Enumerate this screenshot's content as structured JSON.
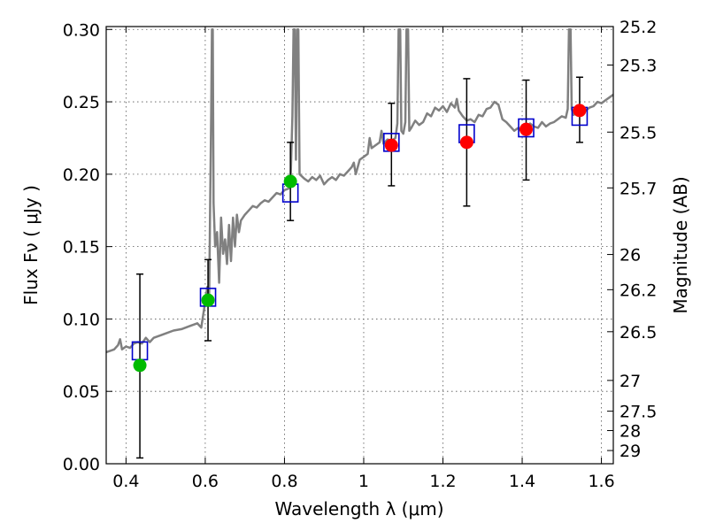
{
  "chart_data": {
    "type": "scatter",
    "xlabel": "Wavelength  λ (μm)",
    "ylabel": "Flux  Fν  ( μJy )",
    "y2label": "Magnitude (AB)",
    "xlim": [
      0.35,
      1.63
    ],
    "ylim": [
      0.0,
      0.302
    ],
    "grid": true,
    "x_ticks": [
      {
        "value": 0.4,
        "label": "0.4"
      },
      {
        "value": 0.6,
        "label": "0.6"
      },
      {
        "value": 0.8,
        "label": "0.8"
      },
      {
        "value": 1.0,
        "label": "1"
      },
      {
        "value": 1.2,
        "label": "1.2"
      },
      {
        "value": 1.4,
        "label": "1.4"
      },
      {
        "value": 1.6,
        "label": "1.6"
      }
    ],
    "y_ticks": [
      {
        "value": 0.0,
        "label": "0.00"
      },
      {
        "value": 0.05,
        "label": "0.05"
      },
      {
        "value": 0.1,
        "label": "0.10"
      },
      {
        "value": 0.15,
        "label": "0.15"
      },
      {
        "value": 0.2,
        "label": "0.20"
      },
      {
        "value": 0.25,
        "label": "0.25"
      },
      {
        "value": 0.3,
        "label": "0.30"
      }
    ],
    "mag_ticks": [
      {
        "value": 25.2,
        "label": "25.2"
      },
      {
        "value": 25.3,
        "label": "25.3"
      },
      {
        "value": 25.5,
        "label": "25.5"
      },
      {
        "value": 25.7,
        "label": "25.7"
      },
      {
        "value": 26,
        "label": "26"
      },
      {
        "value": 26.2,
        "label": "26.2"
      },
      {
        "value": 26.5,
        "label": "26.5"
      },
      {
        "value": 27,
        "label": "27"
      },
      {
        "value": 27.5,
        "label": "27.5"
      },
      {
        "value": 28,
        "label": "28"
      },
      {
        "value": 29,
        "label": "29"
      }
    ],
    "series": [
      {
        "kind": "spectrum",
        "color": "#808080",
        "points": [
          [
            0.35,
            0.077
          ],
          [
            0.36,
            0.078
          ],
          [
            0.37,
            0.079
          ],
          [
            0.38,
            0.082
          ],
          [
            0.385,
            0.086
          ],
          [
            0.39,
            0.079
          ],
          [
            0.4,
            0.081
          ],
          [
            0.41,
            0.08
          ],
          [
            0.42,
            0.083
          ],
          [
            0.43,
            0.084
          ],
          [
            0.44,
            0.083
          ],
          [
            0.45,
            0.087
          ],
          [
            0.46,
            0.084
          ],
          [
            0.47,
            0.087
          ],
          [
            0.48,
            0.088
          ],
          [
            0.49,
            0.089
          ],
          [
            0.5,
            0.09
          ],
          [
            0.52,
            0.092
          ],
          [
            0.54,
            0.093
          ],
          [
            0.56,
            0.095
          ],
          [
            0.58,
            0.097
          ],
          [
            0.59,
            0.094
          ],
          [
            0.6,
            0.112
          ],
          [
            0.605,
            0.122
          ],
          [
            0.61,
            0.118
          ],
          [
            0.612,
            0.17
          ],
          [
            0.615,
            0.24
          ],
          [
            0.617,
            0.3
          ],
          [
            0.619,
            0.3
          ],
          [
            0.621,
            0.18
          ],
          [
            0.625,
            0.15
          ],
          [
            0.63,
            0.16
          ],
          [
            0.635,
            0.125
          ],
          [
            0.64,
            0.17
          ],
          [
            0.645,
            0.145
          ],
          [
            0.65,
            0.155
          ],
          [
            0.655,
            0.138
          ],
          [
            0.66,
            0.165
          ],
          [
            0.665,
            0.14
          ],
          [
            0.67,
            0.17
          ],
          [
            0.675,
            0.15
          ],
          [
            0.68,
            0.172
          ],
          [
            0.685,
            0.16
          ],
          [
            0.69,
            0.168
          ],
          [
            0.7,
            0.172
          ],
          [
            0.71,
            0.175
          ],
          [
            0.72,
            0.178
          ],
          [
            0.73,
            0.177
          ],
          [
            0.74,
            0.18
          ],
          [
            0.75,
            0.182
          ],
          [
            0.76,
            0.181
          ],
          [
            0.77,
            0.184
          ],
          [
            0.78,
            0.187
          ],
          [
            0.79,
            0.186
          ],
          [
            0.8,
            0.189
          ],
          [
            0.81,
            0.19
          ],
          [
            0.815,
            0.192
          ],
          [
            0.82,
            0.24
          ],
          [
            0.823,
            0.3
          ],
          [
            0.826,
            0.3
          ],
          [
            0.829,
            0.21
          ],
          [
            0.832,
            0.3
          ],
          [
            0.835,
            0.3
          ],
          [
            0.838,
            0.2
          ],
          [
            0.85,
            0.197
          ],
          [
            0.86,
            0.195
          ],
          [
            0.87,
            0.198
          ],
          [
            0.88,
            0.196
          ],
          [
            0.89,
            0.199
          ],
          [
            0.9,
            0.193
          ],
          [
            0.91,
            0.196
          ],
          [
            0.92,
            0.198
          ],
          [
            0.93,
            0.196
          ],
          [
            0.94,
            0.2
          ],
          [
            0.95,
            0.199
          ],
          [
            0.96,
            0.202
          ],
          [
            0.97,
            0.205
          ],
          [
            0.975,
            0.208
          ],
          [
            0.98,
            0.2
          ],
          [
            0.99,
            0.21
          ],
          [
            1.0,
            0.212
          ],
          [
            1.01,
            0.214
          ],
          [
            1.015,
            0.225
          ],
          [
            1.02,
            0.218
          ],
          [
            1.03,
            0.22
          ],
          [
            1.04,
            0.222
          ],
          [
            1.045,
            0.23
          ],
          [
            1.05,
            0.221
          ],
          [
            1.06,
            0.224
          ],
          [
            1.07,
            0.223
          ],
          [
            1.08,
            0.225
          ],
          [
            1.085,
            0.235
          ],
          [
            1.088,
            0.3
          ],
          [
            1.092,
            0.3
          ],
          [
            1.095,
            0.23
          ],
          [
            1.1,
            0.228
          ],
          [
            1.105,
            0.236
          ],
          [
            1.108,
            0.3
          ],
          [
            1.112,
            0.3
          ],
          [
            1.115,
            0.23
          ],
          [
            1.12,
            0.232
          ],
          [
            1.13,
            0.237
          ],
          [
            1.14,
            0.234
          ],
          [
            1.15,
            0.236
          ],
          [
            1.16,
            0.242
          ],
          [
            1.17,
            0.24
          ],
          [
            1.18,
            0.246
          ],
          [
            1.19,
            0.244
          ],
          [
            1.2,
            0.247
          ],
          [
            1.21,
            0.243
          ],
          [
            1.22,
            0.249
          ],
          [
            1.23,
            0.246
          ],
          [
            1.235,
            0.252
          ],
          [
            1.24,
            0.244
          ],
          [
            1.25,
            0.24
          ],
          [
            1.26,
            0.237
          ],
          [
            1.27,
            0.238
          ],
          [
            1.28,
            0.236
          ],
          [
            1.29,
            0.241
          ],
          [
            1.3,
            0.24
          ],
          [
            1.31,
            0.245
          ],
          [
            1.32,
            0.246
          ],
          [
            1.33,
            0.25
          ],
          [
            1.34,
            0.248
          ],
          [
            1.35,
            0.238
          ],
          [
            1.36,
            0.236
          ],
          [
            1.37,
            0.233
          ],
          [
            1.38,
            0.23
          ],
          [
            1.39,
            0.232
          ],
          [
            1.4,
            0.229
          ],
          [
            1.41,
            0.231
          ],
          [
            1.42,
            0.235
          ],
          [
            1.43,
            0.233
          ],
          [
            1.44,
            0.232
          ],
          [
            1.45,
            0.236
          ],
          [
            1.46,
            0.233
          ],
          [
            1.47,
            0.235
          ],
          [
            1.48,
            0.236
          ],
          [
            1.49,
            0.238
          ],
          [
            1.5,
            0.24
          ],
          [
            1.51,
            0.239
          ],
          [
            1.515,
            0.245
          ],
          [
            1.518,
            0.3
          ],
          [
            1.522,
            0.3
          ],
          [
            1.525,
            0.245
          ],
          [
            1.53,
            0.241
          ],
          [
            1.54,
            0.243
          ],
          [
            1.55,
            0.245
          ],
          [
            1.56,
            0.244
          ],
          [
            1.57,
            0.246
          ],
          [
            1.58,
            0.247
          ],
          [
            1.59,
            0.25
          ],
          [
            1.6,
            0.249
          ],
          [
            1.61,
            0.251
          ],
          [
            1.62,
            0.253
          ],
          [
            1.63,
            0.255
          ]
        ]
      },
      {
        "kind": "model_boxes",
        "color": "#0000cc",
        "points": [
          {
            "x": 0.435,
            "y": 0.078
          },
          {
            "x": 0.607,
            "y": 0.115
          },
          {
            "x": 0.815,
            "y": 0.187
          },
          {
            "x": 1.07,
            "y": 0.222
          },
          {
            "x": 1.26,
            "y": 0.228
          },
          {
            "x": 1.41,
            "y": 0.232
          },
          {
            "x": 1.545,
            "y": 0.24
          }
        ]
      },
      {
        "kind": "observed",
        "points": [
          {
            "x": 0.435,
            "y": 0.068,
            "err_lo": 0.004,
            "err_hi": 0.131,
            "color": "#00bb00"
          },
          {
            "x": 0.607,
            "y": 0.113,
            "err_lo": 0.085,
            "err_hi": 0.141,
            "color": "#00bb00"
          },
          {
            "x": 0.815,
            "y": 0.195,
            "err_lo": 0.168,
            "err_hi": 0.222,
            "color": "#00bb00"
          },
          {
            "x": 1.07,
            "y": 0.22,
            "err_lo": 0.192,
            "err_hi": 0.249,
            "color": "#ff0000"
          },
          {
            "x": 1.26,
            "y": 0.222,
            "err_lo": 0.178,
            "err_hi": 0.266,
            "color": "#ff0000"
          },
          {
            "x": 1.41,
            "y": 0.231,
            "err_lo": 0.196,
            "err_hi": 0.265,
            "color": "#ff0000"
          },
          {
            "x": 1.545,
            "y": 0.244,
            "err_lo": 0.222,
            "err_hi": 0.267,
            "color": "#ff0000"
          }
        ]
      }
    ]
  }
}
